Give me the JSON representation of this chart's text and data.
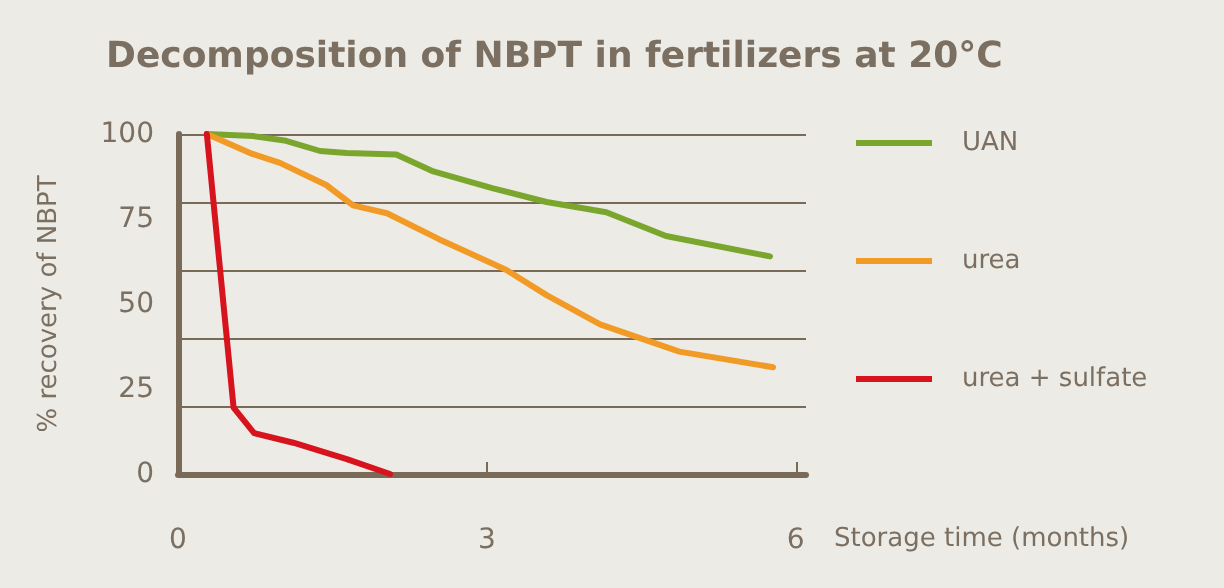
{
  "chart_data": {
    "type": "line",
    "title": "Decomposition of NBPT in fertilizers at 20°C",
    "xlabel": "Storage time (months)",
    "ylabel": "% recovery of NBPT",
    "xlim": [
      0,
      6.1
    ],
    "xticks": [
      0,
      3,
      6
    ],
    "ylim": [
      0,
      100
    ],
    "yticks": [
      0,
      25,
      50,
      75,
      100
    ],
    "grid": "y",
    "legend": "right",
    "marker": "none",
    "line_style": "solid",
    "series": [
      {
        "name": "UAN",
        "color": "#7aa62e",
        "x": [
          0.28,
          0.73,
          1.05,
          1.38,
          1.64,
          2.12,
          2.48,
          3.06,
          3.58,
          4.16,
          4.74,
          5.75
        ],
        "values": [
          100,
          99.4,
          98,
          95,
          94.4,
          94,
          89,
          84,
          80,
          77,
          70,
          64
        ]
      },
      {
        "name": "urea",
        "color": "#f29a26",
        "x": [
          0.28,
          0.7,
          0.99,
          1.44,
          1.7,
          2.03,
          2.54,
          3.19,
          3.58,
          4.1,
          4.87,
          5.78
        ],
        "values": [
          100,
          94.4,
          91.5,
          85,
          79,
          76.7,
          69,
          60,
          52.6,
          44,
          36,
          31.4
        ]
      },
      {
        "name": "urea + sulfate",
        "color": "#d7141d",
        "x": [
          0.28,
          0.54,
          0.74,
          1.12,
          1.64,
          2.06
        ],
        "values": [
          100,
          19.5,
          12,
          9.2,
          4.4,
          0
        ]
      }
    ]
  }
}
